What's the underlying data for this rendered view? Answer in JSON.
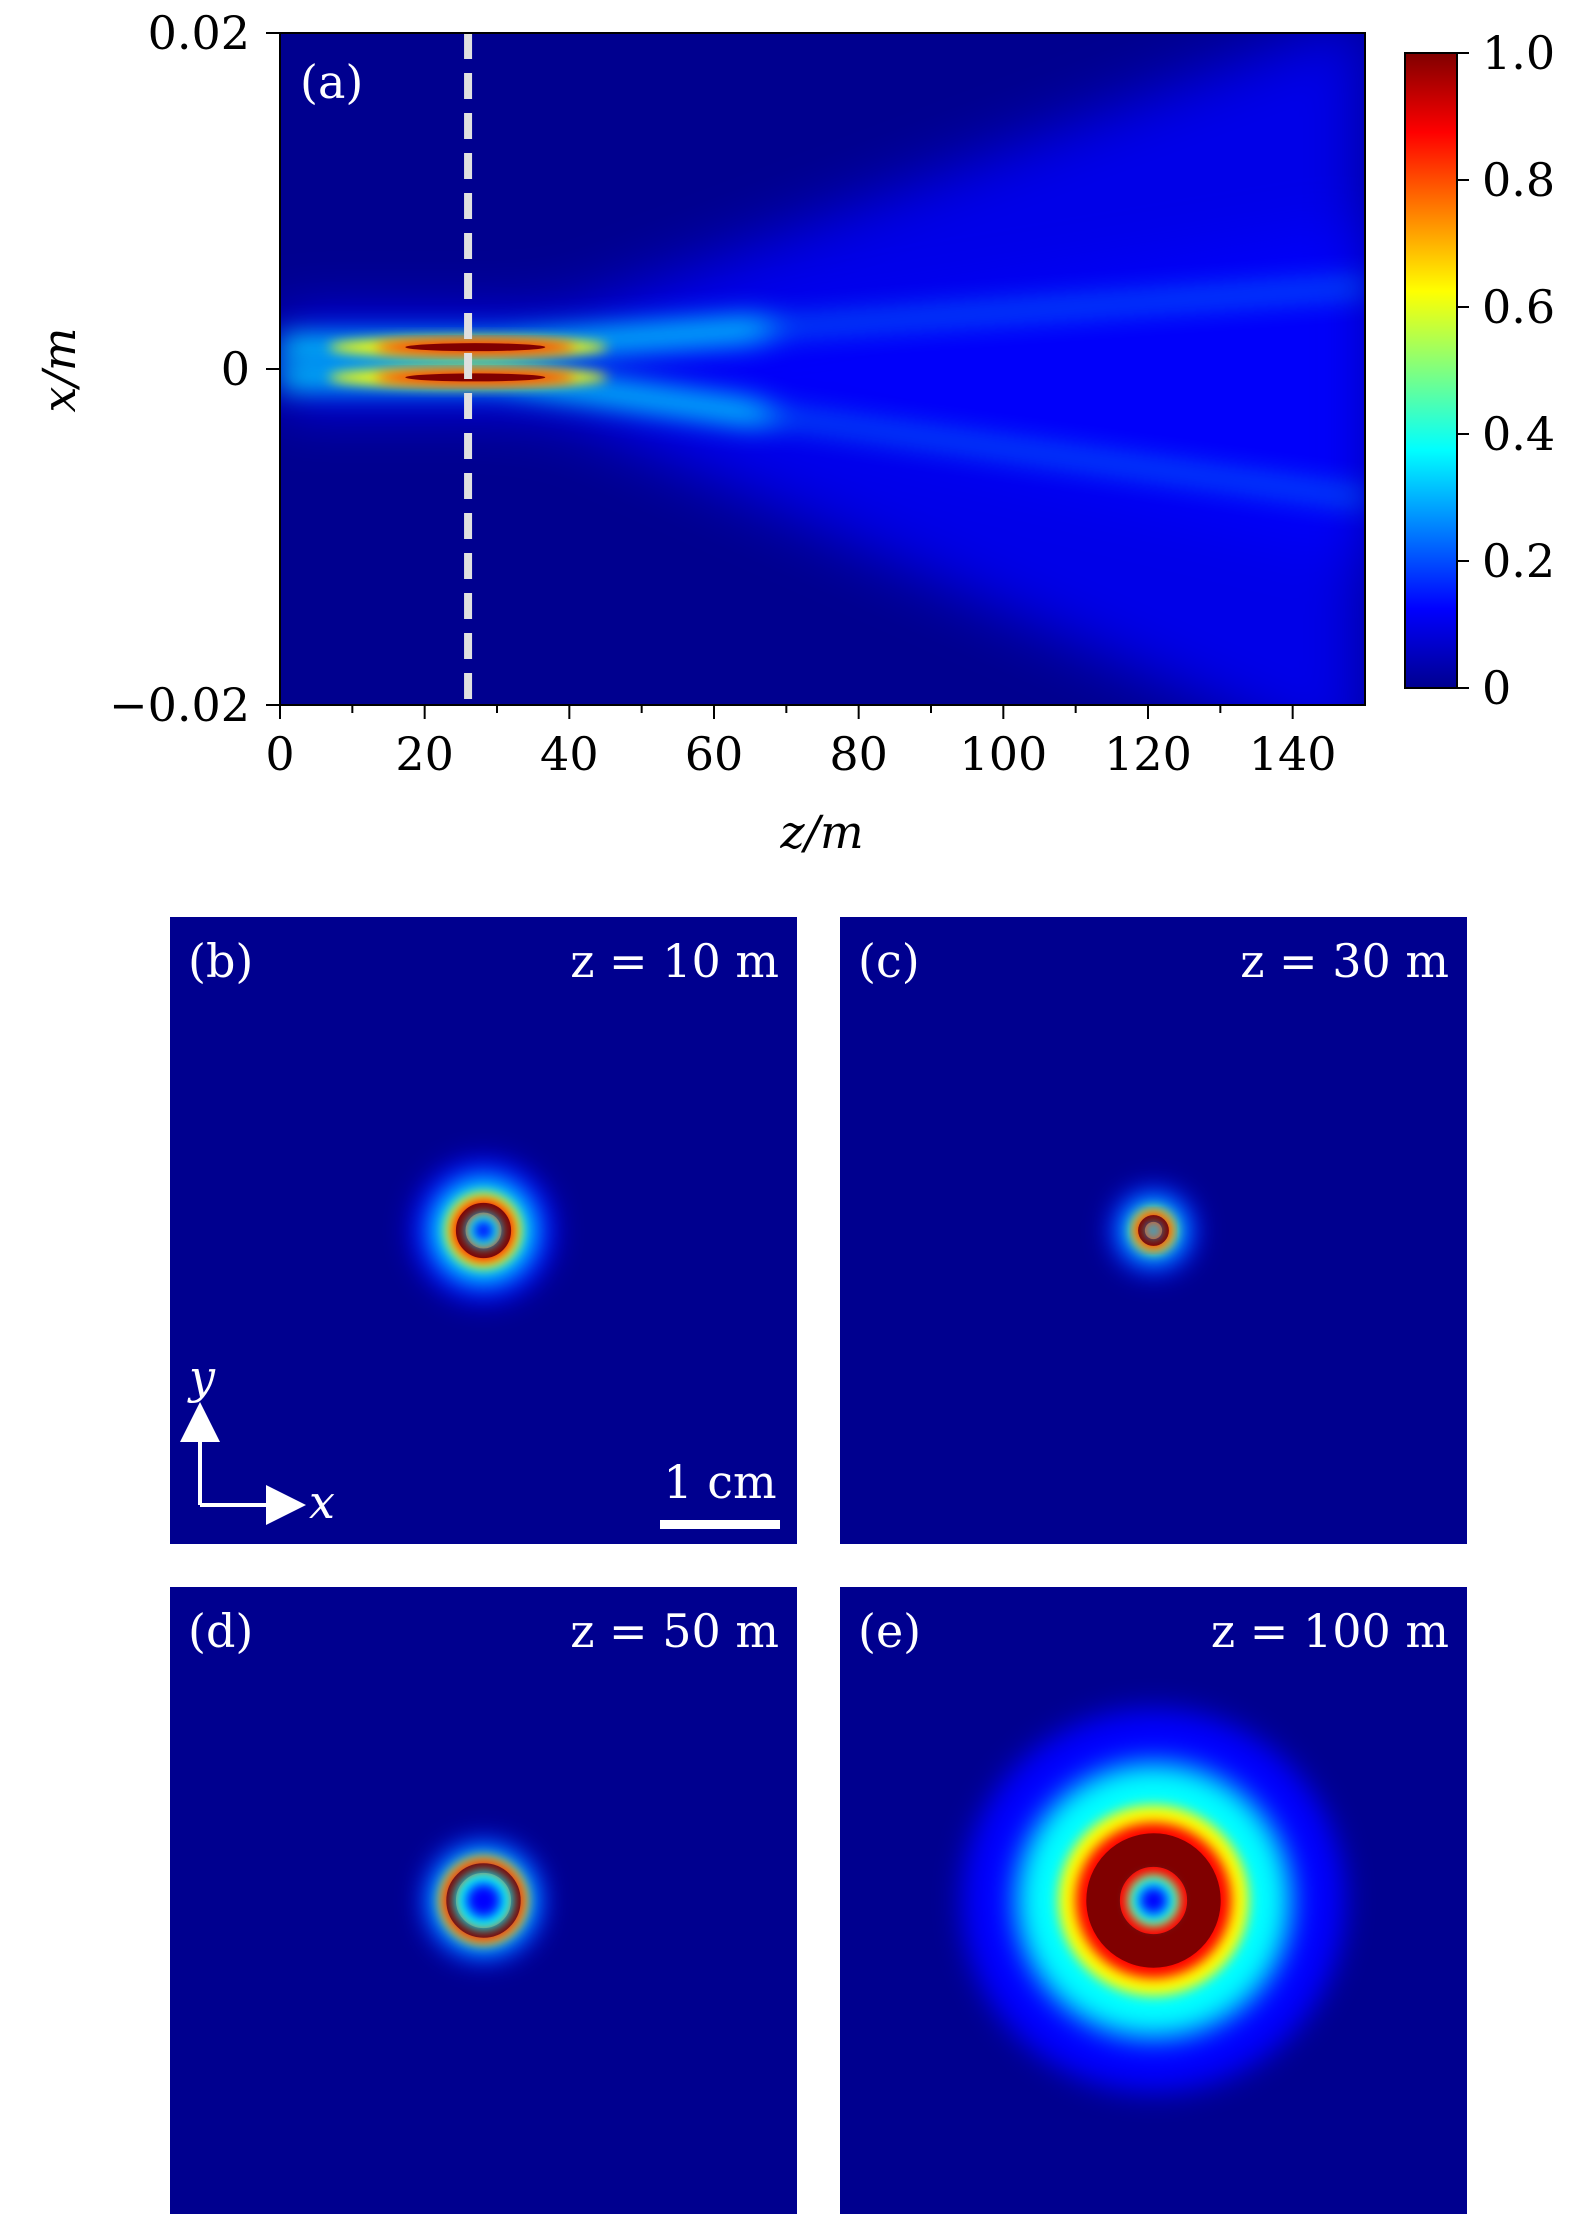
{
  "colors": {
    "background": "#00008f",
    "colormap": [
      "#00008f",
      "#0000ff",
      "#00ffff",
      "#ffff00",
      "#ff0000",
      "#800000"
    ],
    "axis": "#000000",
    "marker_line": "#e0e0e0",
    "overlay_text": "#ffffff"
  },
  "chart_data": [
    {
      "type": "heatmap",
      "panel_label": "(a)",
      "xlabel": "z/m",
      "ylabel": "x/m",
      "xlim": [
        0,
        150
      ],
      "ylim": [
        -0.02,
        0.02
      ],
      "x_ticks": [
        0,
        20,
        40,
        60,
        80,
        100,
        120,
        140
      ],
      "x_tick_labels": [
        "0",
        "20",
        "40",
        "60",
        "80",
        "100",
        "120",
        "140"
      ],
      "y_ticks": [
        0.02,
        0,
        -0.02
      ],
      "y_tick_labels": [
        "0.02",
        "0",
        "−0.02"
      ],
      "colorbar": {
        "range": [
          0,
          1.0
        ],
        "ticks": [
          0,
          0.2,
          0.4,
          0.6,
          0.8,
          1.0
        ],
        "tick_labels": [
          "0",
          "0.2",
          "0.4",
          "0.6",
          "0.8",
          "1.0"
        ]
      },
      "marker_line_z": 26,
      "lobes": [
        {
          "z_peak": 25,
          "x_center_at_peak": 0.0013,
          "peak_intensity": 1.0
        },
        {
          "z_peak": 25,
          "x_center_at_peak": -0.0005,
          "peak_intensity": 1.0
        }
      ],
      "grid": false
    },
    {
      "type": "heatmap",
      "panel_label": "(b)",
      "annotation": "z = 10 m",
      "profile": "ring",
      "ring_radius_cm": 0.19,
      "ring_width_cm": 0.1,
      "halo_width_cm": 0.35,
      "peak_intensity": 1.0
    },
    {
      "type": "heatmap",
      "panel_label": "(c)",
      "annotation": "z = 30 m",
      "profile": "ring",
      "ring_radius_cm": 0.1,
      "ring_width_cm": 0.07,
      "halo_width_cm": 0.22,
      "peak_intensity": 1.0
    },
    {
      "type": "heatmap",
      "panel_label": "(d)",
      "annotation": "z = 50 m",
      "profile": "ring",
      "ring_radius_cm": 0.27,
      "ring_width_cm": 0.1,
      "halo_width_cm": 0.18,
      "peak_intensity": 1.0
    },
    {
      "type": "heatmap",
      "panel_label": "(e)",
      "annotation": "z = 100 m",
      "profile": "ring",
      "ring_radius_cm": 0.42,
      "ring_width_cm": 0.35,
      "halo_width_cm": 1.0,
      "peak_intensity": 1.0
    }
  ],
  "panel_b_extras": {
    "scale_bar_label": "1 cm",
    "scale_bar_length_cm": 1,
    "axis_y_label": "y",
    "axis_x_label": "x"
  }
}
